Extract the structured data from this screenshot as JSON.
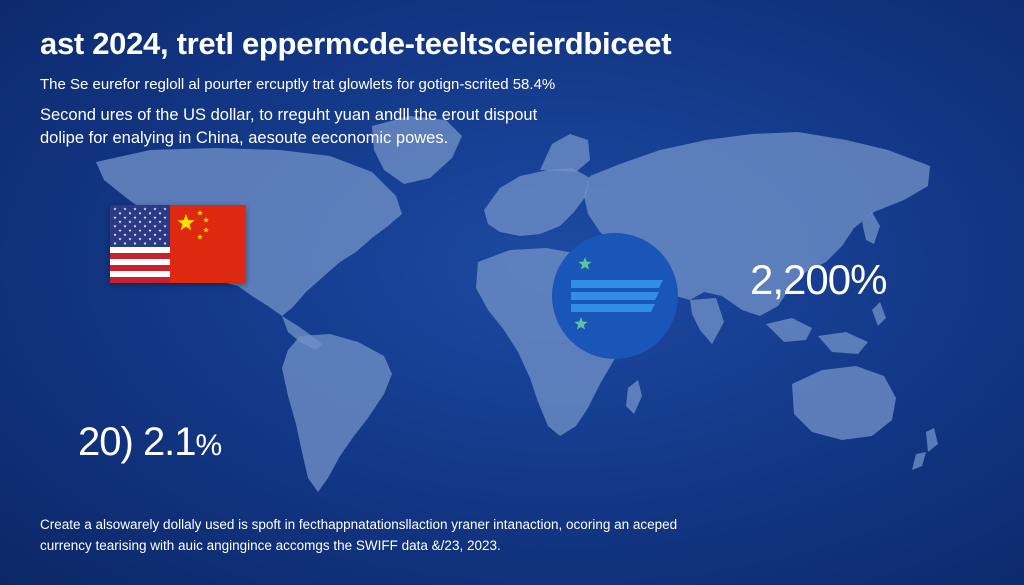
{
  "header": {
    "headline": "ast 2024, tretl eppermcde-teeltsceierdbiceet",
    "subline": "The Se eurefor regloll al pourter ercuptly trat glowlets for gotign-scrited 58.4%"
  },
  "intro": {
    "line1": "Second ures of the US dollar, to rreguht yuan andll the erout dispout",
    "line2": "dolipe for enalying in China, aesoute eeconomic powes."
  },
  "stats": {
    "right_value": "2,200%",
    "left_prefix": "20)",
    "left_value": "2.1",
    "left_percent": "%"
  },
  "footer": {
    "line1": "Create a alsowarely dollaly used is spoft in fecthappnatationsllaction yraner intanaction, ocoring an aceped",
    "line2": "currency tearising with auic angingince accomgs the SWIFF data &/23, 2023."
  },
  "flags": {
    "left": "us-flag",
    "right": "china-flag",
    "us_red": "#c8202f",
    "us_blue": "#2b3a86",
    "china_red": "#de2910",
    "china_yellow": "#ffde00"
  },
  "emblem": {
    "icon": "currency-emblem-icon",
    "circle_color": "#1a55b8",
    "stripe_color": "#2f8ee6",
    "star_color": "#5ac6a0"
  },
  "colors": {
    "background": "#163d8f",
    "land": "#6f8fc6",
    "text": "#ffffff"
  }
}
